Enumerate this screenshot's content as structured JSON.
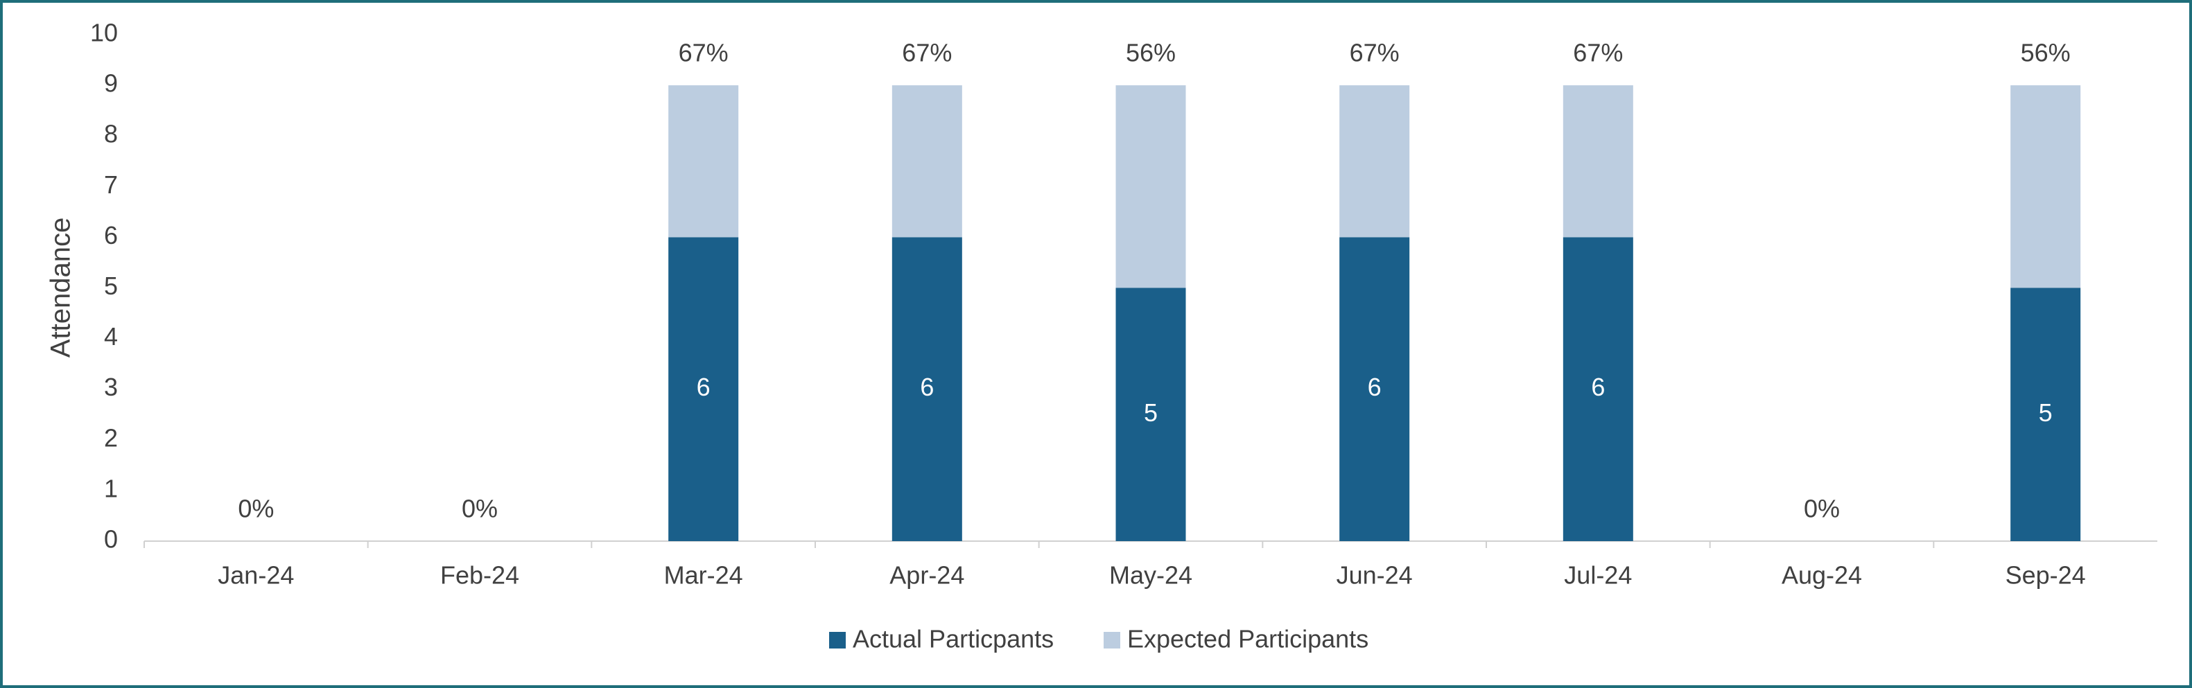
{
  "chart_data": {
    "type": "stacked_bar",
    "y_label": "Attendance",
    "categories": [
      "Jan-24",
      "Feb-24",
      "Mar-24",
      "Apr-24",
      "May-24",
      "Jun-24",
      "Jul-24",
      "Aug-24",
      "Sep-24"
    ],
    "series": [
      {
        "name": "Actual Particpants",
        "color": "#1a5f8a",
        "values": [
          0,
          0,
          6,
          6,
          5,
          6,
          6,
          0,
          5
        ]
      },
      {
        "name": "Expected Participants",
        "color": "#bccde0",
        "values": [
          0,
          0,
          3,
          3,
          4,
          3,
          3,
          0,
          4
        ]
      }
    ],
    "rate_labels": [
      "0%",
      "0%",
      "67%",
      "67%",
      "56%",
      "67%",
      "67%",
      "0%",
      "56%"
    ],
    "ylim": [
      0,
      10
    ],
    "yticks": [
      0,
      1,
      2,
      3,
      4,
      5,
      6,
      7,
      8,
      9,
      10
    ],
    "legend": "bottom"
  }
}
